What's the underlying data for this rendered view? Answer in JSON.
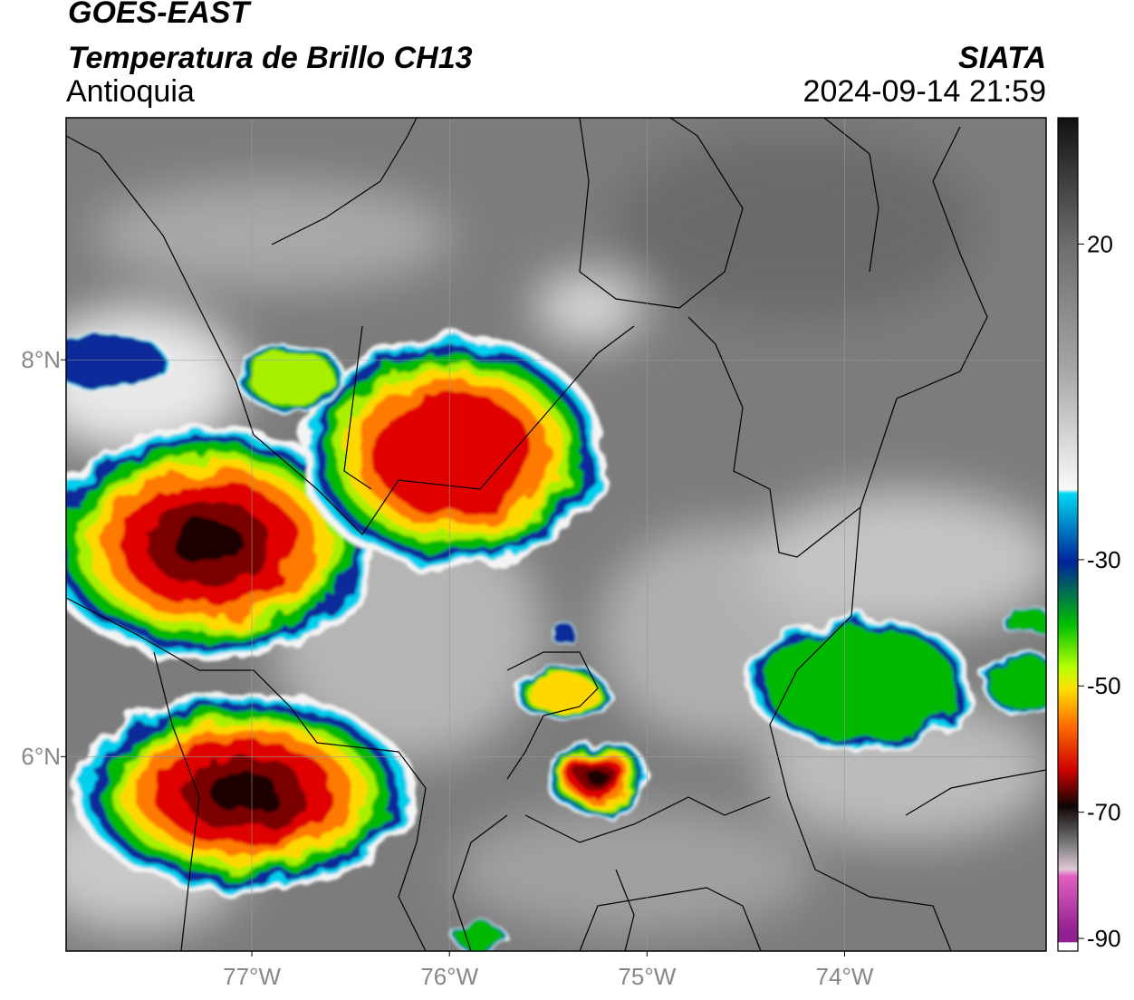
{
  "header": {
    "title": "GOES-EAST",
    "subtitle": "Temperatura de Brillo CH13",
    "region": "Antioquia",
    "source": "SIATA",
    "datetime": "2024-09-14 21:59"
  },
  "map": {
    "xlim": [
      -77.94,
      -72.98
    ],
    "ylim": [
      5.02,
      9.22
    ],
    "xticks": [
      {
        "value": -77,
        "label": "77°W"
      },
      {
        "value": -76,
        "label": "76°W"
      },
      {
        "value": -75,
        "label": "75°W"
      },
      {
        "value": -74,
        "label": "74°W"
      }
    ],
    "yticks": [
      {
        "value": 6,
        "label": "6°N"
      },
      {
        "value": 8,
        "label": "8°N"
      }
    ],
    "grid": true
  },
  "colorbar": {
    "lim": [
      -92,
      40
    ],
    "ticks": [
      -90,
      -70,
      -50,
      -30,
      20
    ]
  }
}
